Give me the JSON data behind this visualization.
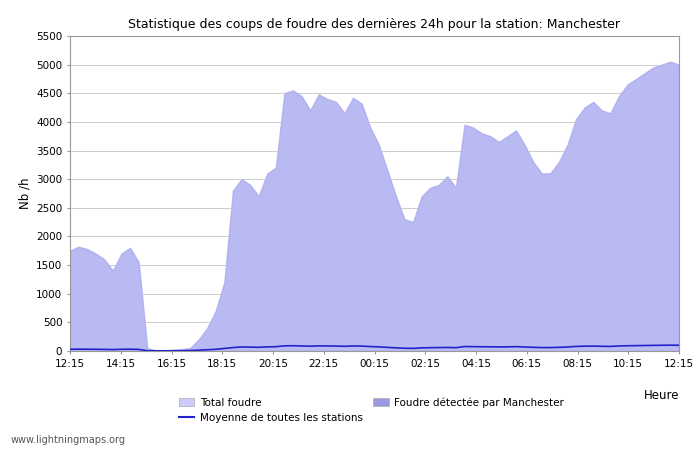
{
  "title": "Statistique des coups de foudre des dernières 24h pour la station: Manchester",
  "xlabel": "Heure",
  "ylabel": "Nb /h",
  "ylim": [
    0,
    5500
  ],
  "yticks": [
    0,
    500,
    1000,
    1500,
    2000,
    2500,
    3000,
    3500,
    4000,
    4500,
    5000,
    5500
  ],
  "xtick_labels": [
    "12:15",
    "14:15",
    "16:15",
    "18:15",
    "20:15",
    "22:15",
    "00:15",
    "02:15",
    "04:15",
    "06:15",
    "08:15",
    "10:15",
    "12:15"
  ],
  "fill_color_total": "#ccccff",
  "fill_color_detected": "#9999dd",
  "line_color": "#2222cc",
  "background_color": "#ffffff",
  "watermark": "www.lightningmaps.org",
  "legend_total": "Total foudre",
  "legend_moyenne": "Moyenne de toutes les stations",
  "legend_detected": "Foudre détectée par Manchester",
  "total_foudre_y": [
    1750,
    1820,
    1780,
    1700,
    1600,
    1400,
    1700,
    1800,
    1550,
    50,
    10,
    10,
    20,
    30,
    50,
    200,
    400,
    700,
    1200,
    2800,
    3000,
    2900,
    2700,
    3100,
    3200,
    4500,
    4550,
    4450,
    4200,
    4480,
    4400,
    4350,
    4150,
    4420,
    4320,
    3900,
    3600,
    3150,
    2700,
    2300,
    2250,
    2700,
    2850,
    2900,
    3050,
    2850,
    3950,
    3900,
    3800,
    3750,
    3650,
    3750,
    3850,
    3600,
    3300,
    3100,
    3100,
    3300,
    3600,
    4050,
    4250,
    4350,
    4200,
    4150,
    4450,
    4650,
    4750,
    4850,
    4950,
    5000,
    5050,
    5000
  ],
  "detected_y": [
    1750,
    1820,
    1780,
    1700,
    1600,
    1400,
    1700,
    1800,
    1550,
    50,
    10,
    10,
    20,
    30,
    50,
    200,
    400,
    700,
    1200,
    2800,
    3000,
    2900,
    2700,
    3100,
    3200,
    4500,
    4550,
    4450,
    4200,
    4480,
    4400,
    4350,
    4150,
    4420,
    4320,
    3900,
    3600,
    3150,
    2700,
    2300,
    2250,
    2700,
    2850,
    2900,
    3050,
    2850,
    3950,
    3900,
    3800,
    3750,
    3650,
    3750,
    3850,
    3600,
    3300,
    3100,
    3100,
    3300,
    3600,
    4050,
    4250,
    4350,
    4200,
    4150,
    4450,
    4650,
    4750,
    4850,
    4950,
    5000,
    5050,
    5000
  ],
  "moyenne_y": [
    30,
    32,
    31,
    30,
    28,
    25,
    30,
    32,
    28,
    5,
    3,
    3,
    4,
    5,
    8,
    15,
    22,
    30,
    45,
    60,
    70,
    68,
    65,
    72,
    75,
    90,
    92,
    88,
    84,
    90,
    88,
    86,
    82,
    88,
    85,
    78,
    72,
    63,
    55,
    48,
    46,
    55,
    58,
    60,
    62,
    58,
    78,
    76,
    74,
    73,
    71,
    73,
    76,
    70,
    64,
    60,
    60,
    64,
    70,
    80,
    84,
    86,
    82,
    80,
    88,
    92,
    94,
    96,
    98,
    100,
    102,
    100
  ],
  "n_points": 72
}
